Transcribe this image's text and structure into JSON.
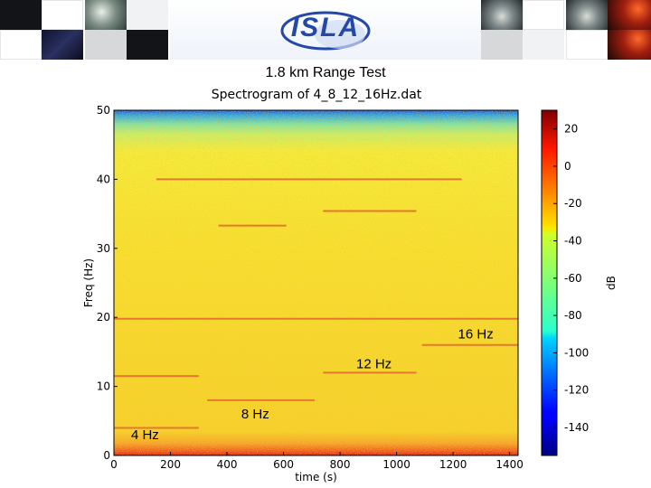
{
  "slide": {
    "title": "1.8 km Range Test"
  },
  "banner": {
    "logo_text": "ISLA"
  },
  "colors": {
    "background": "#ffffff",
    "spec_base": "#f6dc2a",
    "line_color": "#e5782c",
    "logo_blue": "#2348a8"
  },
  "chart_data": {
    "type": "heatmap",
    "title": "Spectrogram of 4_8_12_16Hz.dat",
    "xlabel": "time (s)",
    "ylabel": "Freq (Hz)",
    "xlim": [
      0,
      1430
    ],
    "ylim": [
      0,
      50
    ],
    "xticks": [
      0,
      200,
      400,
      600,
      800,
      1000,
      1200,
      1400
    ],
    "yticks": [
      0,
      10,
      20,
      30,
      40,
      50
    ],
    "colorbar": {
      "label": "dB",
      "range": [
        -155,
        30
      ],
      "ticks": [
        20,
        0,
        -20,
        -40,
        -60,
        -80,
        -100,
        -120,
        -140
      ]
    },
    "grid": false,
    "tone_segments": [
      {
        "freq": 4,
        "t_start": 0,
        "t_end": 300
      },
      {
        "freq": 8,
        "t_start": 330,
        "t_end": 710
      },
      {
        "freq": 12,
        "t_start": 740,
        "t_end": 1070
      },
      {
        "freq": 16,
        "t_start": 1090,
        "t_end": 1430
      },
      {
        "freq": 11.5,
        "t_start": 0,
        "t_end": 300
      },
      {
        "freq": 19.8,
        "t_start": 0,
        "t_end": 1430
      },
      {
        "freq": 33.3,
        "t_start": 370,
        "t_end": 610
      },
      {
        "freq": 35.4,
        "t_start": 740,
        "t_end": 1070
      },
      {
        "freq": 40,
        "t_start": 150,
        "t_end": 1230
      }
    ],
    "annotations": [
      {
        "text": "4 Hz",
        "t": 110,
        "freq": 3
      },
      {
        "text": "8 Hz",
        "t": 500,
        "freq": 6
      },
      {
        "text": "12 Hz",
        "t": 920,
        "freq": 13.3
      },
      {
        "text": "16 Hz",
        "t": 1280,
        "freq": 17.6
      }
    ]
  }
}
